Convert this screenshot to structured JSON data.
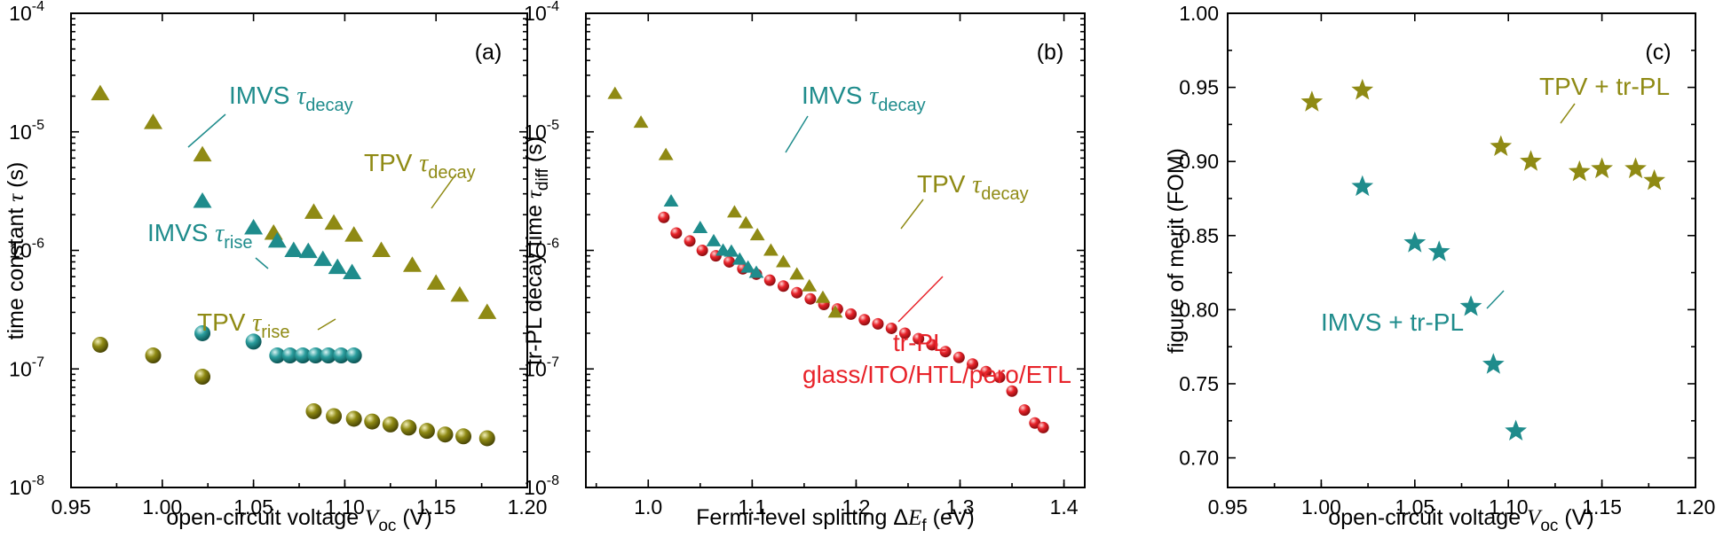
{
  "colors": {
    "olive": "#8f8a14",
    "teal": "#1f8c8c",
    "red": "#e8232a"
  },
  "chart_data": [
    {
      "id": "a",
      "type": "scatter",
      "panel_label": "(a)",
      "xlabel_main": "open-circuit voltage ",
      "xlabel_sym": "V",
      "xlabel_sub": "oc",
      "xlabel_unit": " (V)",
      "ylabel_main": "time constant ",
      "ylabel_sym": "τ",
      "ylabel_unit": " (s)",
      "yscale": "log",
      "xlim": [
        0.95,
        1.2
      ],
      "ylim": [
        1e-08,
        0.0001
      ],
      "xticks": [
        0.95,
        1.0,
        1.05,
        1.1,
        1.15,
        1.2
      ],
      "xtick_labels": [
        "0.95",
        "1.00",
        "1.05",
        "1.10",
        "1.15",
        "1.20"
      ],
      "yticks": [
        1e-08,
        1e-07,
        1e-06,
        1e-05,
        0.0001
      ],
      "ytick_exps": [
        "-8",
        "-7",
        "-6",
        "-5",
        "-4"
      ],
      "series": [
        {
          "name": "TPV τdecay",
          "marker": "triangle",
          "color": "olive",
          "x": [
            0.966,
            0.995,
            1.022,
            1.061,
            1.083,
            1.094,
            1.105,
            1.12,
            1.137,
            1.15,
            1.163,
            1.178
          ],
          "y": [
            2.1e-05,
            1.2e-05,
            6.4e-06,
            1.4e-06,
            2.1e-06,
            1.7e-06,
            1.35e-06,
            1e-06,
            7.5e-07,
            5.3e-07,
            4.2e-07,
            3e-07
          ]
        },
        {
          "name": "IMVS τdecay",
          "marker": "triangle",
          "color": "teal",
          "x": [
            1.022,
            1.05,
            1.063,
            1.072,
            1.08,
            1.088,
            1.096,
            1.104
          ],
          "y": [
            2.6e-06,
            1.55e-06,
            1.2e-06,
            1e-06,
            9.8e-07,
            8.4e-07,
            7.2e-07,
            6.5e-07
          ]
        },
        {
          "name": "IMVS τrise",
          "marker": "sphere",
          "color": "teal",
          "x": [
            1.022,
            1.05,
            1.063,
            1.07,
            1.077,
            1.084,
            1.091,
            1.098,
            1.105
          ],
          "y": [
            2e-07,
            1.7e-07,
            1.3e-07,
            1.3e-07,
            1.3e-07,
            1.3e-07,
            1.3e-07,
            1.3e-07,
            1.3e-07
          ]
        },
        {
          "name": "TPV τrise",
          "marker": "sphere",
          "color": "olive",
          "x": [
            0.966,
            0.995,
            1.022,
            1.083,
            1.094,
            1.105,
            1.115,
            1.125,
            1.135,
            1.145,
            1.155,
            1.165,
            1.178
          ],
          "y": [
            1.6e-07,
            1.3e-07,
            8.6e-08,
            4.4e-08,
            4e-08,
            3.8e-08,
            3.6e-08,
            3.4e-08,
            3.2e-08,
            3e-08,
            2.8e-08,
            2.7e-08,
            2.6e-08
          ]
        }
      ],
      "annotations": [
        {
          "main": "IMVS ",
          "sym": "τ",
          "sub": "decay",
          "color": "teal"
        },
        {
          "main": "TPV ",
          "sym": "τ",
          "sub": "decay",
          "color": "olive"
        },
        {
          "main": "IMVS ",
          "sym": "τ",
          "sub": "rise",
          "color": "teal"
        },
        {
          "main": "TPV ",
          "sym": "τ",
          "sub": "rise",
          "color": "olive"
        }
      ]
    },
    {
      "id": "b",
      "type": "scatter",
      "panel_label": "(b)",
      "xlabel_main": "Fermi-level splitting Δ",
      "xlabel_sym": "E",
      "xlabel_sub": "f",
      "xlabel_unit": " (eV)",
      "ylabel_main": "tr-PL decay time ",
      "ylabel_sym": "τ",
      "ylabel_sub": "diff",
      "ylabel_unit": " (s)",
      "yscale": "log",
      "xlim": [
        0.94,
        1.42
      ],
      "ylim": [
        1e-08,
        0.0001
      ],
      "xticks": [
        1.0,
        1.1,
        1.2,
        1.3,
        1.4
      ],
      "xtick_labels": [
        "1.0",
        "1.1",
        "1.2",
        "1.3",
        "1.4"
      ],
      "yticks": [
        1e-08,
        1e-07,
        1e-06,
        1e-05,
        0.0001
      ],
      "ytick_exps": [
        "-8",
        "-7",
        "-6",
        "-5",
        "-4"
      ],
      "series": [
        {
          "name": "tr-PL",
          "marker": "sphere",
          "color": "red",
          "x": [
            1.015,
            1.027,
            1.04,
            1.052,
            1.065,
            1.078,
            1.091,
            1.104,
            1.117,
            1.13,
            1.143,
            1.156,
            1.169,
            1.182,
            1.195,
            1.208,
            1.221,
            1.234,
            1.247,
            1.26,
            1.273,
            1.286,
            1.299,
            1.312,
            1.325,
            1.338,
            1.35,
            1.362,
            1.372,
            1.38
          ],
          "y": [
            1.9e-06,
            1.4e-06,
            1.2e-06,
            1e-06,
            9e-07,
            8e-07,
            7e-07,
            6.3e-07,
            5.6e-07,
            5e-07,
            4.4e-07,
            3.9e-07,
            3.5e-07,
            3.2e-07,
            2.9e-07,
            2.6e-07,
            2.4e-07,
            2.2e-07,
            2e-07,
            1.8e-07,
            1.6e-07,
            1.4e-07,
            1.25e-07,
            1.1e-07,
            9.5e-08,
            8.5e-08,
            6.5e-08,
            4.5e-08,
            3.5e-08,
            3.2e-08
          ]
        },
        {
          "name": "TPV τdecay",
          "marker": "triangle",
          "color": "olive",
          "x": [
            0.968,
            0.993,
            1.017,
            1.083,
            1.094,
            1.105,
            1.118,
            1.13,
            1.143,
            1.155,
            1.168,
            1.18
          ],
          "y": [
            2.1e-05,
            1.2e-05,
            6.4e-06,
            2.1e-06,
            1.7e-06,
            1.35e-06,
            1e-06,
            8e-07,
            6.3e-07,
            5e-07,
            4e-07,
            3e-07
          ]
        },
        {
          "name": "IMVS τdecay",
          "marker": "triangle",
          "color": "teal",
          "x": [
            1.022,
            1.05,
            1.063,
            1.072,
            1.08,
            1.088,
            1.096,
            1.104
          ],
          "y": [
            2.6e-06,
            1.55e-06,
            1.2e-06,
            1e-06,
            9.8e-07,
            8.4e-07,
            7.2e-07,
            6.5e-07
          ]
        }
      ],
      "annotations": [
        {
          "main": "IMVS ",
          "sym": "τ",
          "sub": "decay",
          "color": "teal"
        },
        {
          "main": "TPV ",
          "sym": "τ",
          "sub": "decay",
          "color": "olive"
        },
        {
          "main": "tr-PL",
          "color": "red"
        },
        {
          "main": "glass/ITO/HTL/pero/ETL",
          "color": "red"
        }
      ]
    },
    {
      "id": "c",
      "type": "scatter",
      "panel_label": "(c)",
      "xlabel_main": "open-circuit voltage ",
      "xlabel_sym": "V",
      "xlabel_sub": "oc",
      "xlabel_unit": " (V)",
      "ylabel_main": "figure of merit (FOM)",
      "yscale": "linear",
      "xlim": [
        0.95,
        1.2
      ],
      "ylim": [
        0.68,
        1.0
      ],
      "xticks": [
        0.95,
        1.0,
        1.05,
        1.1,
        1.15,
        1.2
      ],
      "xtick_labels": [
        "0.95",
        "1.00",
        "1.05",
        "1.10",
        "1.15",
        "1.20"
      ],
      "yticks": [
        0.7,
        0.75,
        0.8,
        0.85,
        0.9,
        0.95,
        1.0
      ],
      "ytick_labels": [
        "0.70",
        "0.75",
        "0.80",
        "0.85",
        "0.90",
        "0.95",
        "1.00"
      ],
      "series": [
        {
          "name": "TPV + tr-PL",
          "marker": "star",
          "color": "olive",
          "x": [
            0.995,
            1.022,
            1.096,
            1.112,
            1.138,
            1.15,
            1.168,
            1.178
          ],
          "y": [
            0.94,
            0.948,
            0.91,
            0.9,
            0.893,
            0.895,
            0.895,
            0.887
          ]
        },
        {
          "name": "IMVS + tr-PL",
          "marker": "star",
          "color": "teal",
          "x": [
            1.022,
            1.05,
            1.063,
            1.08,
            1.092,
            1.104
          ],
          "y": [
            0.883,
            0.845,
            0.839,
            0.802,
            0.763,
            0.718
          ]
        }
      ],
      "annotations": [
        {
          "main": "TPV + tr-PL",
          "color": "olive"
        },
        {
          "main": "IMVS + tr-PL",
          "color": "teal"
        }
      ]
    }
  ]
}
